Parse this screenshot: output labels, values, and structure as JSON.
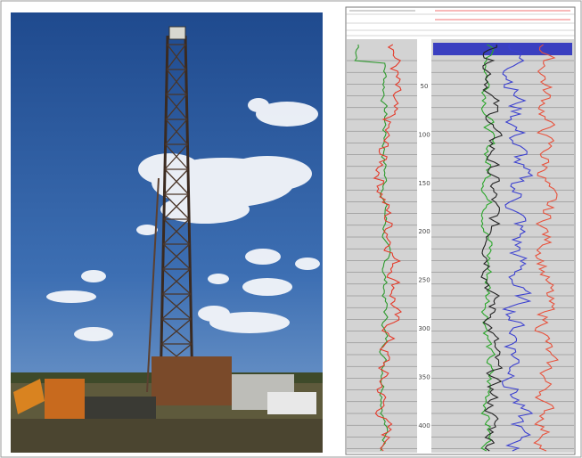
{
  "log": {
    "depth_labels": [
      "50",
      "100",
      "150",
      "200",
      "250",
      "300",
      "350",
      "400"
    ]
  }
}
